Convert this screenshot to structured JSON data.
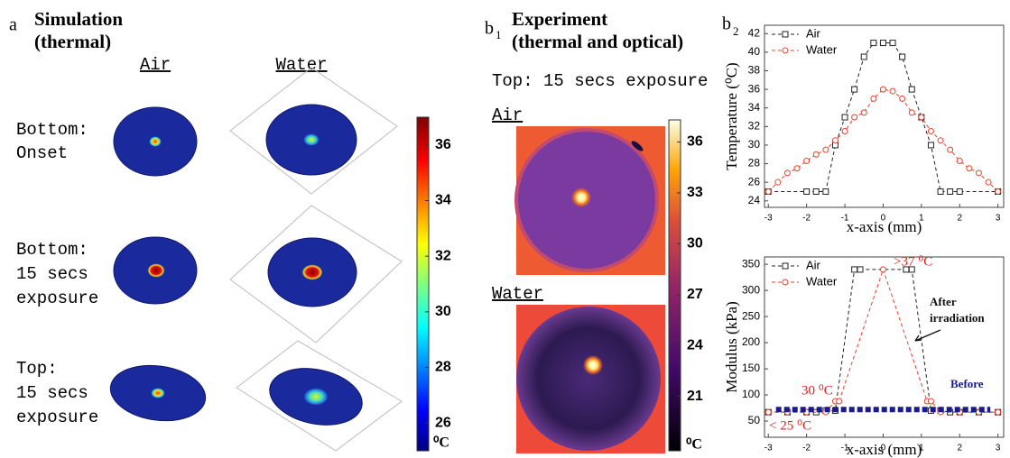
{
  "panel_a": {
    "letter": "a",
    "title": [
      "Simulation",
      "(thermal)"
    ],
    "columns": [
      "Air",
      "Water"
    ],
    "rows": [
      [
        "Bottom:",
        "Onset"
      ],
      [
        "Bottom:",
        "15 secs",
        "exposure"
      ],
      [
        "Top:",
        "15 secs",
        "exposure"
      ]
    ],
    "colorbar": {
      "range": [
        25,
        37
      ],
      "ticks": [
        26,
        28,
        30,
        32,
        34,
        36
      ],
      "unit": "⁰C"
    }
  },
  "panel_b1": {
    "letter": "b",
    "subscript": "1",
    "title": [
      "Experiment",
      "(thermal and optical)"
    ],
    "subtitle": "Top: 15 secs exposure",
    "rows": [
      "Air",
      "Water"
    ],
    "colorbar": {
      "range": [
        17.8,
        37.3
      ],
      "ticks": [
        21,
        24,
        27,
        30,
        33,
        36
      ],
      "unit": "⁰C"
    }
  },
  "panel_b2": {
    "letter": "b",
    "subscript": "2"
  },
  "chart_data": [
    {
      "type": "line",
      "xlabel": "x-axis (mm)",
      "ylabel": "Temperature (⁰C)",
      "xlim": [
        -3.1,
        3.15
      ],
      "ylim": [
        23.3,
        42.9
      ],
      "xticks": [
        -3,
        -2,
        -1,
        0,
        1,
        2,
        3
      ],
      "yticks": [
        24,
        26,
        28,
        30,
        32,
        34,
        36,
        38,
        40,
        42
      ],
      "legend": "top-left",
      "series": [
        {
          "name": "Air",
          "color": "#222222",
          "marker": "square",
          "x": [
            -3,
            -2,
            -1.75,
            -1.5,
            -1.25,
            -1,
            -0.75,
            -0.5,
            -0.25,
            0,
            0.25,
            0.5,
            0.75,
            1,
            1.25,
            1.5,
            1.75,
            2,
            3
          ],
          "values": [
            25,
            25,
            25,
            25,
            30,
            33,
            36,
            39.5,
            41,
            41,
            41,
            39.5,
            36,
            33,
            30,
            25,
            25,
            25,
            25
          ]
        },
        {
          "name": "Water",
          "color": "#e8412c",
          "marker": "circle",
          "x": [
            -3,
            -2.75,
            -2.5,
            -2.25,
            -2,
            -1.75,
            -1.5,
            -1.25,
            -1,
            -0.75,
            -0.5,
            -0.25,
            0,
            0.25,
            0.5,
            0.75,
            1,
            1.25,
            1.5,
            1.75,
            2,
            2.25,
            2.5,
            2.75,
            3
          ],
          "values": [
            25,
            26,
            27,
            27.5,
            28.3,
            29,
            29.5,
            30.5,
            31.5,
            33,
            33.5,
            35,
            36,
            35.8,
            35,
            33.5,
            33,
            31.5,
            30.5,
            29.5,
            28.3,
            27.5,
            27,
            26,
            25
          ]
        }
      ]
    },
    {
      "type": "line",
      "xlabel": "x-axis (mm)",
      "ylabel": "Modulus (kPa)",
      "xlim": [
        -3.1,
        3.15
      ],
      "ylim": [
        19,
        364
      ],
      "xticks": [
        -3,
        -2,
        -1,
        0,
        1,
        2,
        3
      ],
      "yticks": [
        50,
        100,
        150,
        200,
        250,
        300,
        350
      ],
      "legend": "top-left",
      "series": [
        {
          "name": "Air",
          "color": "#222222",
          "marker": "square",
          "x": [
            -3,
            -2.5,
            -2,
            -1.75,
            -1.5,
            -1.25,
            -0.75,
            -0.6,
            0.6,
            0.75,
            1.25,
            1.5,
            1.75,
            2,
            2.5,
            3
          ],
          "values": [
            67,
            67,
            67,
            67,
            70,
            70,
            340,
            340,
            340,
            340,
            70,
            70,
            67,
            67,
            67,
            67
          ]
        },
        {
          "name": "Water",
          "color": "#e8412c",
          "marker": "circle",
          "x": [
            -3,
            -2.5,
            -2,
            -1.5,
            -1.25,
            -1.15,
            0,
            1.15,
            1.25,
            1.5,
            2,
            2.5,
            3
          ],
          "values": [
            67,
            67,
            67,
            67,
            88,
            88,
            340,
            88,
            88,
            67,
            67,
            67,
            67
          ]
        },
        {
          "color": "#1a1a8c",
          "marker": "none",
          "x": [
            -2.8,
            2.8
          ],
          "values": [
            72,
            72
          ]
        }
      ],
      "annotations": [
        {
          "text": ">37 ⁰C",
          "color": "#e02020"
        },
        {
          "text": "30 ⁰C",
          "color": "#e02020"
        },
        {
          "text": "< 25 ⁰C",
          "color": "#e02020"
        },
        {
          "text": [
            "After",
            "irradiation"
          ],
          "color": "#111111"
        },
        {
          "text": "Before",
          "color": "#1a1a8c"
        }
      ]
    }
  ]
}
